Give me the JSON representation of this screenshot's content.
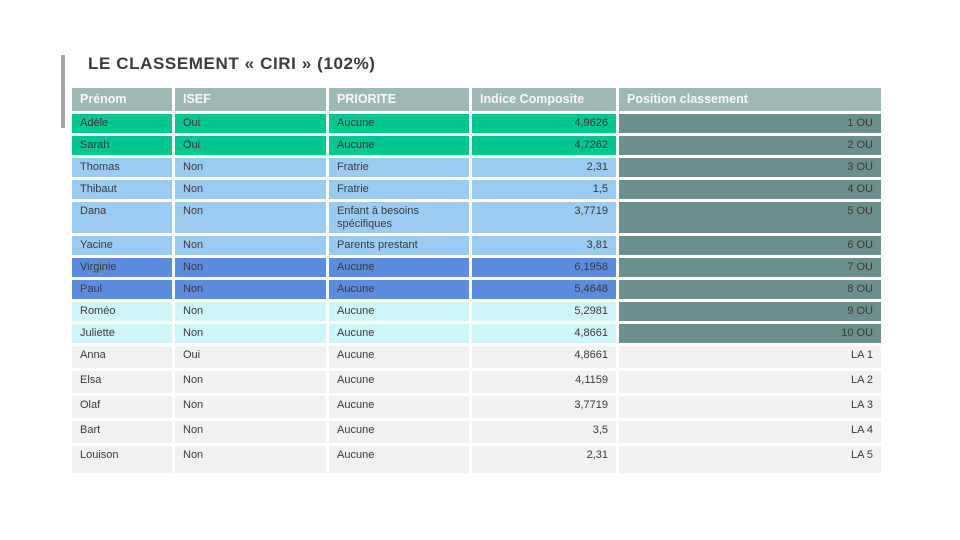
{
  "slide": {
    "title": "LE CLASSEMENT « CIRI » (102%)"
  },
  "table": {
    "columns": [
      "Prénom",
      "ISEF",
      "PRIORITE",
      "Indice Composite",
      "Position classement"
    ],
    "rows": [
      {
        "prenom": "Adèle",
        "isef": "Oui",
        "priorite": "Aucune",
        "indice": "4,9626",
        "position": "1 OU",
        "group": "OU",
        "color": "green"
      },
      {
        "prenom": "Sarah",
        "isef": "Oui",
        "priorite": "Aucune",
        "indice": "4,7262",
        "position": "2 OU",
        "group": "OU",
        "color": "green"
      },
      {
        "prenom": "Thomas",
        "isef": "Non",
        "priorite": "Fratrie",
        "indice": "2,31",
        "position": "3 OU",
        "group": "OU",
        "color": "light_blue"
      },
      {
        "prenom": "Thibaut",
        "isef": "Non",
        "priorite": "Fratrie",
        "indice": "1,5",
        "position": "4 OU",
        "group": "OU",
        "color": "light_blue"
      },
      {
        "prenom": "Dana",
        "isef": "Non",
        "priorite": "Enfant à besoins spécifiques",
        "indice": "3,7719",
        "position": "5 OU",
        "group": "OU",
        "color": "light_blue"
      },
      {
        "prenom": "Yacine",
        "isef": "Non",
        "priorite": "Parents prestant",
        "indice": "3,81",
        "position": "6 OU",
        "group": "OU",
        "color": "light_blue"
      },
      {
        "prenom": "Virginie",
        "isef": "Non",
        "priorite": "Aucune",
        "indice": "6,1958",
        "position": "7 OU",
        "group": "OU",
        "color": "medium_blue"
      },
      {
        "prenom": "Paul",
        "isef": "Non",
        "priorite": "Aucune",
        "indice": "5,4648",
        "position": "8 OU",
        "group": "OU",
        "color": "medium_blue"
      },
      {
        "prenom": "Roméo",
        "isef": "Non",
        "priorite": "Aucune",
        "indice": "5,2981",
        "position": "9 OU",
        "group": "OU",
        "color": "pale_cyan"
      },
      {
        "prenom": "Juliette",
        "isef": "Non",
        "priorite": "Aucune",
        "indice": "4,8661",
        "position": "10 OU",
        "group": "OU",
        "color": "pale_cyan"
      },
      {
        "prenom": "Anna",
        "isef": "Oui",
        "priorite": "Aucune",
        "indice": "4,8661",
        "position": "LA 1",
        "group": "LA",
        "color": "light_gray"
      },
      {
        "prenom": "Elsa",
        "isef": "Non",
        "priorite": "Aucune",
        "indice": "4,1159",
        "position": "LA 2",
        "group": "LA",
        "color": "light_gray"
      },
      {
        "prenom": "Olaf",
        "isef": "Non",
        "priorite": "Aucune",
        "indice": "3,7719",
        "position": "LA 3",
        "group": "LA",
        "color": "light_gray"
      },
      {
        "prenom": "Bart",
        "isef": "Non",
        "priorite": "Aucune",
        "indice": "3,5",
        "position": "LA 4",
        "group": "LA",
        "color": "light_gray"
      },
      {
        "prenom": "Louison",
        "isef": "Non",
        "priorite": "Aucune",
        "indice": "2,31",
        "position": "LA 5",
        "group": "LA",
        "color": "light_gray"
      }
    ]
  },
  "colors": {
    "header_bg": "#9db9b5",
    "header_text": "#f7f7f7",
    "green": "#00c78e",
    "light_blue": "#99ccf0",
    "medium_blue": "#5c8cdf",
    "pale_cyan": "#cdf6f8",
    "light_gray": "#f1f1f1",
    "position_teal": "#6a908c",
    "accent_bar": "#a5a6a6",
    "title_text": "#3b3b3b",
    "cell_text": "#3a3a3a"
  }
}
